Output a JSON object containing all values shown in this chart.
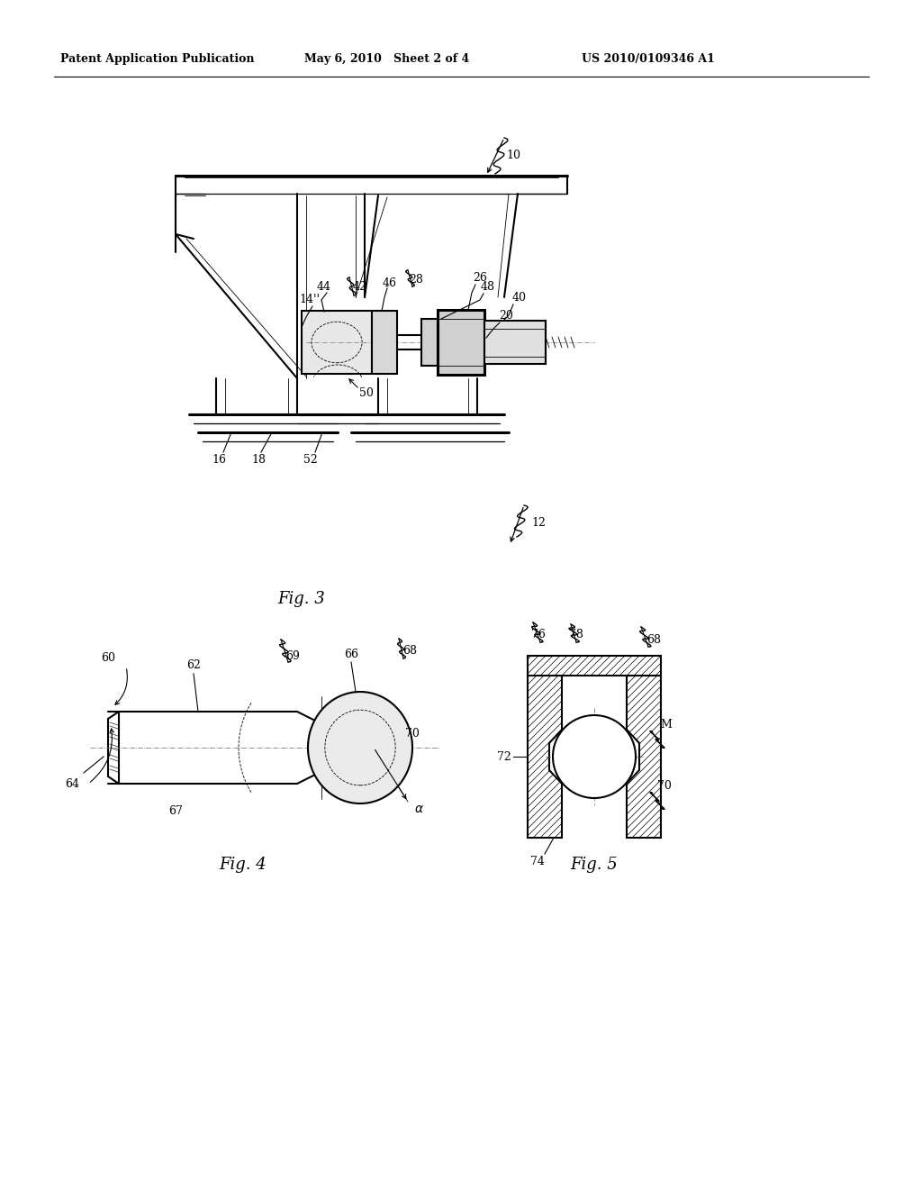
{
  "bg_color": "#ffffff",
  "line_color": "#000000",
  "header_left": "Patent Application Publication",
  "header_mid": "May 6, 2010   Sheet 2 of 4",
  "header_right": "US 2010/0109346 A1",
  "fig3_label": "Fig. 3",
  "fig4_label": "Fig. 4",
  "fig5_label": "Fig. 5"
}
